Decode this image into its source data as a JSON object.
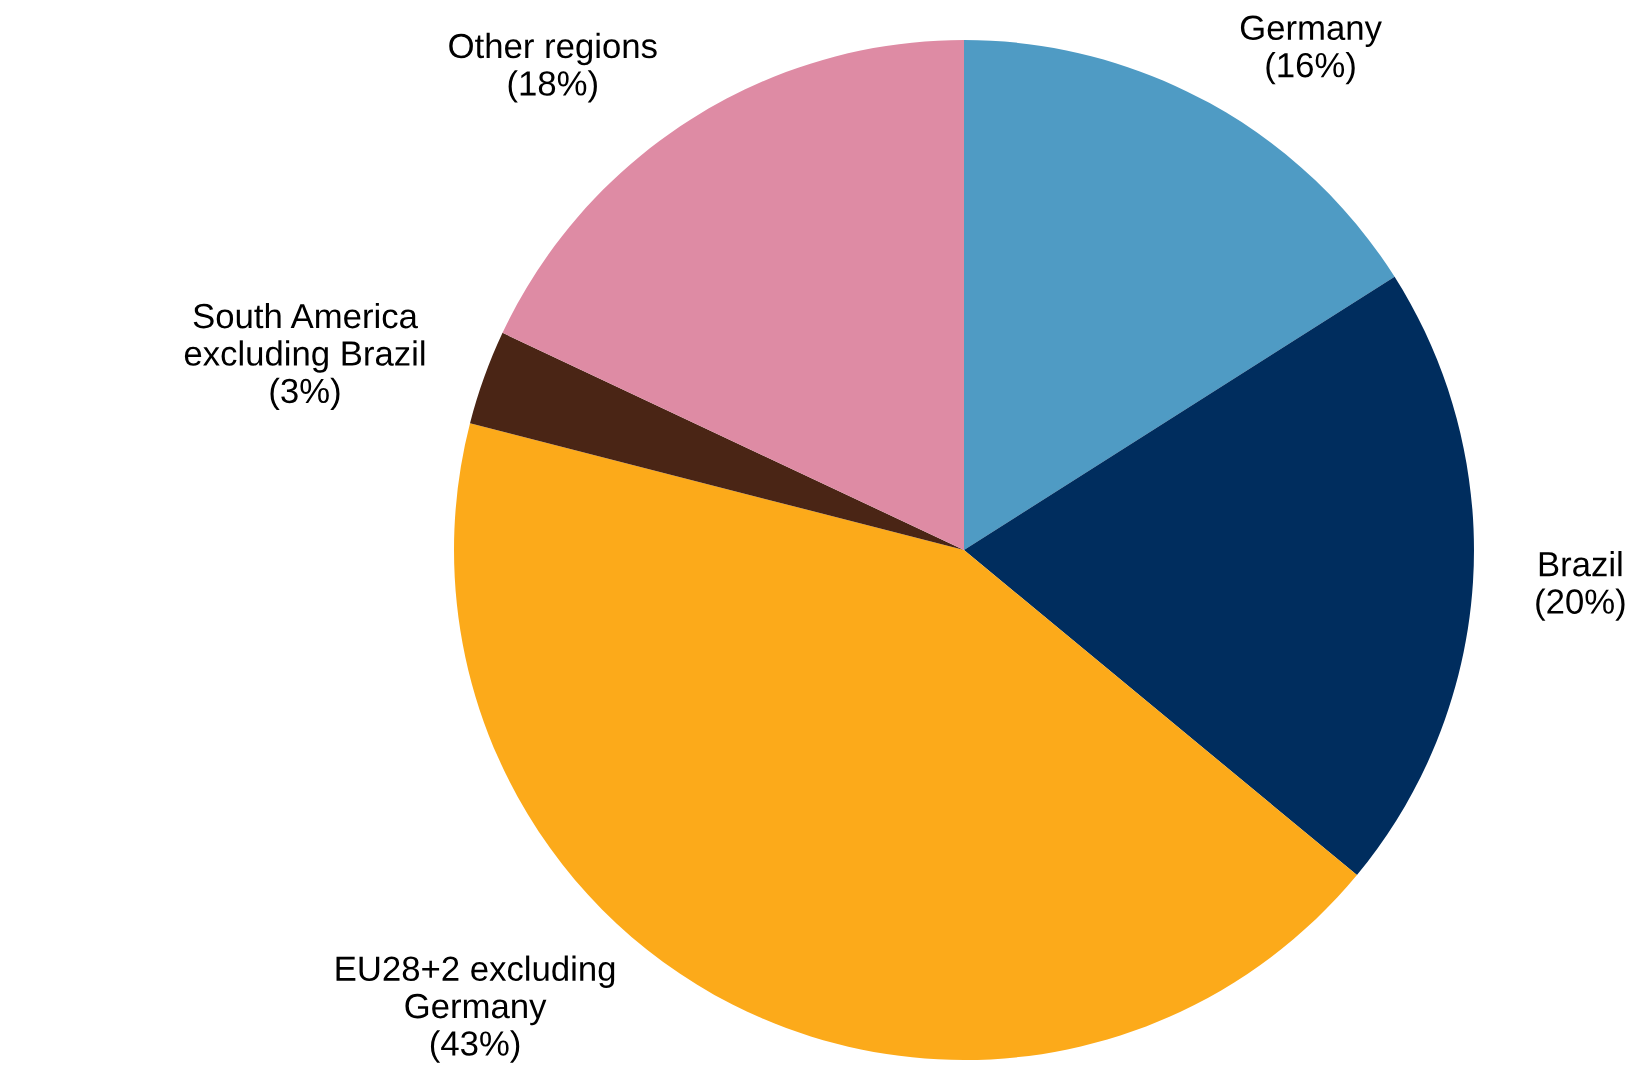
{
  "chart_data": {
    "type": "pie",
    "categories": [
      "Germany",
      "Brazil",
      "EU28+2 excluding\nGermany",
      "South America\nexcluding Brazil",
      "Other regions"
    ],
    "values": [
      16,
      20,
      43,
      3,
      18
    ],
    "value_labels": [
      "(16%)",
      "(20%)",
      "(43%)",
      "(3%)",
      "(18%)"
    ],
    "colors": [
      "#4f9bc4",
      "#002d5e",
      "#fcaa1a",
      "#4a2515",
      "#de8ba4"
    ]
  }
}
